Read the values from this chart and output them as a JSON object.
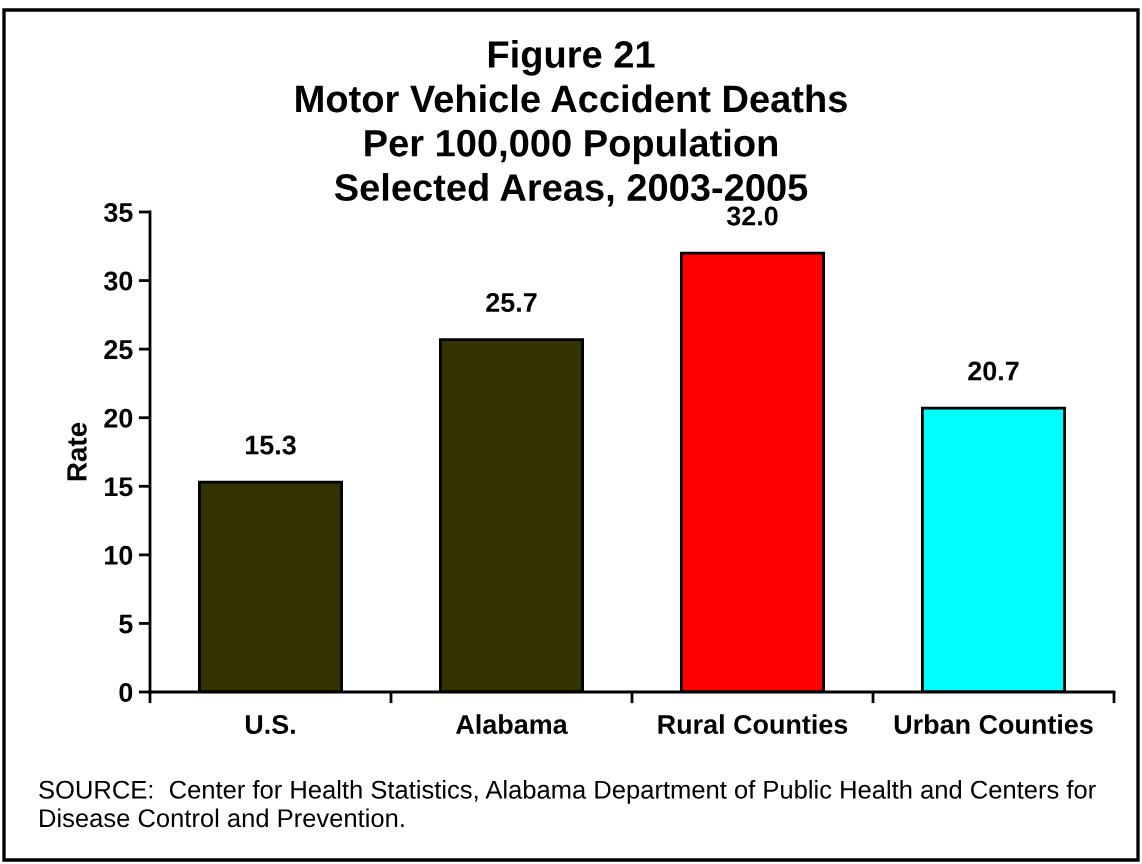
{
  "chart_data": {
    "type": "bar",
    "title": "Figure 21\nMotor Vehicle Accident Deaths\nPer 100,000 Population\nSelected Areas, 2003-2005",
    "ylabel": "Rate",
    "categories": [
      "U.S.",
      "Alabama",
      "Rural Counties",
      "Urban Counties"
    ],
    "values": [
      15.3,
      25.7,
      32.0,
      20.7
    ],
    "value_labels": [
      "15.3",
      "25.7",
      "32.0",
      "20.7"
    ],
    "colors": [
      "#333300",
      "#333300",
      "#ff0000",
      "#00ffff"
    ],
    "ylim": [
      0,
      35
    ],
    "yticks": [
      0,
      5,
      10,
      15,
      20,
      25,
      30,
      35
    ],
    "grid": false,
    "legend": false,
    "annotations": [
      "SOURCE:  Center for Health Statistics, Alabama Department of Public Health and Centers for Disease Control and Prevention."
    ]
  }
}
